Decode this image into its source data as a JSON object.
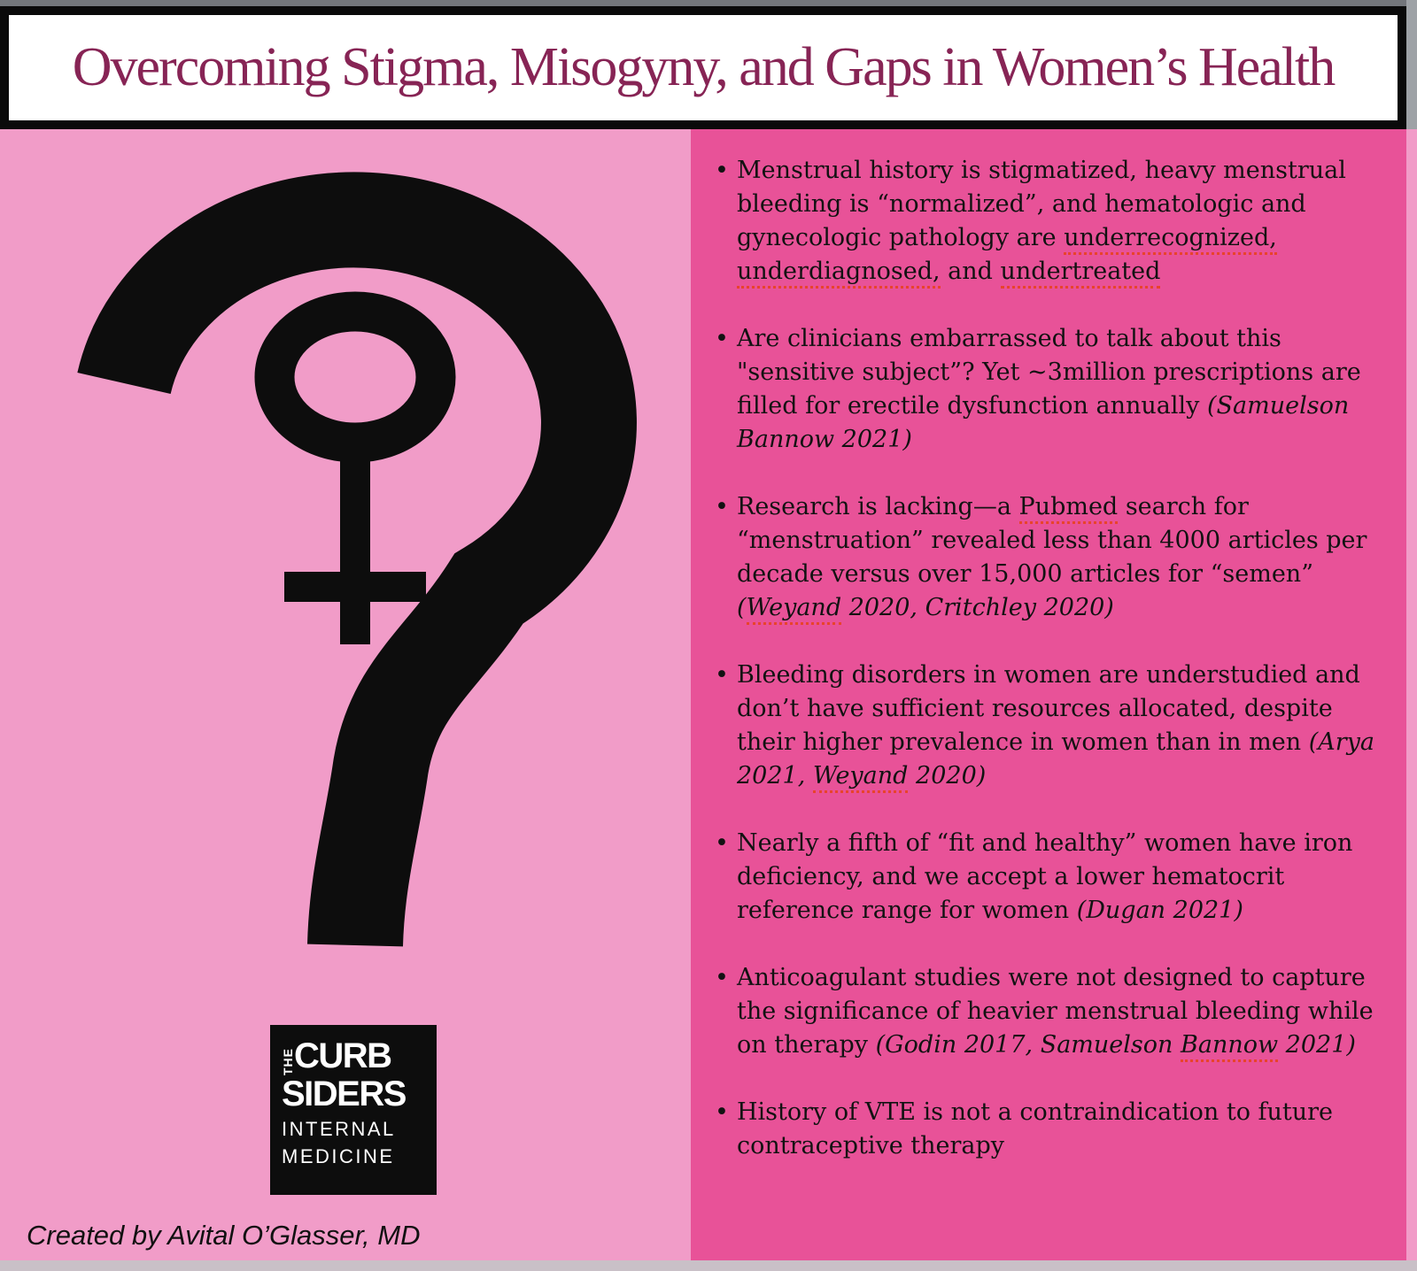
{
  "title": "Overcoming Stigma, Misogyny, and Gaps in Women’s Health",
  "bullet_char": "•",
  "credit": "Created by Avital O’Glasser, MD",
  "logo": {
    "the": "THE",
    "curb": "CURB",
    "siders": "SIDERS",
    "internal": "INTERNAL",
    "medicine": "MEDICINE"
  },
  "colors": {
    "light_pink": "#F19CC8",
    "dark_pink": "#E85298",
    "title_maroon": "#872455",
    "spellcheck_red": "#E8432C",
    "symbol_black": "#0D0D0D"
  },
  "bullets": [
    {
      "segments": [
        {
          "t": "Menstrual history is stigmatized, heavy menstrual bleeding is “normalized”, and hematologic and gynecologic pathology are ",
          "s": "p"
        },
        {
          "t": "underrecognized,",
          "s": "m"
        },
        {
          "t": " ",
          "s": "p"
        },
        {
          "t": "underdiagnosed,",
          "s": "m"
        },
        {
          "t": " and ",
          "s": "p"
        },
        {
          "t": "undertreated",
          "s": "m"
        }
      ]
    },
    {
      "segments": [
        {
          "t": "Are clinicians embarrassed to talk about this \"sensitive subject”? Yet ~3million prescriptions are filled for erectile dysfunction annually ",
          "s": "p"
        },
        {
          "t": "(Samuelson Bannow 2021)",
          "s": "i"
        }
      ]
    },
    {
      "segments": [
        {
          "t": "Research is lacking—a ",
          "s": "p"
        },
        {
          "t": "Pubmed",
          "s": "m"
        },
        {
          "t": " search for “menstruation” revealed less than 4000 articles per decade versus over 15,000 articles for “semen” ",
          "s": "p"
        },
        {
          "t": "(",
          "s": "i"
        },
        {
          "t": "Weyand",
          "s": "im"
        },
        {
          "t": " 2020, Critchley 2020)",
          "s": "i"
        }
      ]
    },
    {
      "segments": [
        {
          "t": "Bleeding disorders in women are understudied and don’t have sufficient resources allocated, despite their higher prevalence in women than in men ",
          "s": "p"
        },
        {
          "t": "(Arya 2021, ",
          "s": "i"
        },
        {
          "t": "Weyand",
          "s": "im"
        },
        {
          "t": " 2020)",
          "s": "i"
        }
      ]
    },
    {
      "segments": [
        {
          "t": "Nearly a fifth of “fit and healthy” women have iron deficiency, and we accept a lower hematocrit reference range for women ",
          "s": "p"
        },
        {
          "t": "(Dugan 2021)",
          "s": "i"
        }
      ]
    },
    {
      "segments": [
        {
          "t": "Anticoagulant studies were not designed to capture the significance of heavier menstrual bleeding while on therapy ",
          "s": "p"
        },
        {
          "t": "(Godin 2017, Samuelson ",
          "s": "i"
        },
        {
          "t": "Bannow",
          "s": "im"
        },
        {
          "t": " 2021)",
          "s": "i"
        }
      ]
    },
    {
      "segments": [
        {
          "t": "History of VTE is not a contraindication to future contraceptive therapy",
          "s": "p"
        }
      ]
    }
  ]
}
